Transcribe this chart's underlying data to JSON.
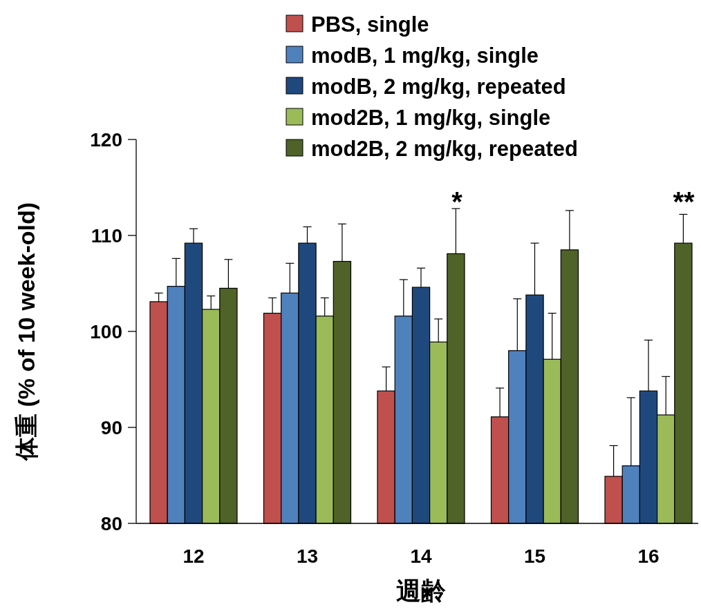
{
  "chart_data": {
    "type": "bar",
    "xlabel": "週齢",
    "ylabel": "体重 (% of 10 week-old)",
    "categories": [
      "12",
      "13",
      "14",
      "15",
      "16"
    ],
    "series": [
      {
        "name": "PBS, single",
        "color": "#c0504d",
        "values": [
          103.1,
          101.9,
          93.8,
          91.1,
          84.9
        ],
        "errors": [
          0.9,
          1.6,
          2.5,
          3.0,
          3.2
        ]
      },
      {
        "name": "modB, 1 mg/kg, single",
        "color": "#4f81bd",
        "values": [
          104.7,
          104.0,
          101.6,
          98.0,
          86.0
        ],
        "errors": [
          2.9,
          3.1,
          3.8,
          5.4,
          7.1
        ]
      },
      {
        "name": "modB, 2 mg/kg, repeated",
        "color": "#1f497d",
        "values": [
          109.2,
          109.2,
          104.6,
          103.8,
          93.8
        ],
        "errors": [
          1.5,
          1.7,
          2.0,
          5.4,
          5.3
        ]
      },
      {
        "name": "mod2B, 1 mg/kg, single",
        "color": "#9bbb59",
        "values": [
          102.3,
          101.6,
          98.9,
          97.1,
          91.3
        ],
        "errors": [
          1.4,
          1.9,
          2.4,
          4.8,
          4.0
        ]
      },
      {
        "name": "mod2B, 2 mg/kg, repeated",
        "color": "#4f6228",
        "values": [
          104.5,
          107.3,
          108.1,
          108.5,
          109.2
        ],
        "errors": [
          3.0,
          3.9,
          4.7,
          4.1,
          3.0
        ]
      }
    ],
    "ylim": [
      80,
      120
    ],
    "yticks": [
      80,
      90,
      100,
      110,
      120
    ],
    "legend": "top right",
    "annotations": [
      "*",
      "**"
    ]
  }
}
